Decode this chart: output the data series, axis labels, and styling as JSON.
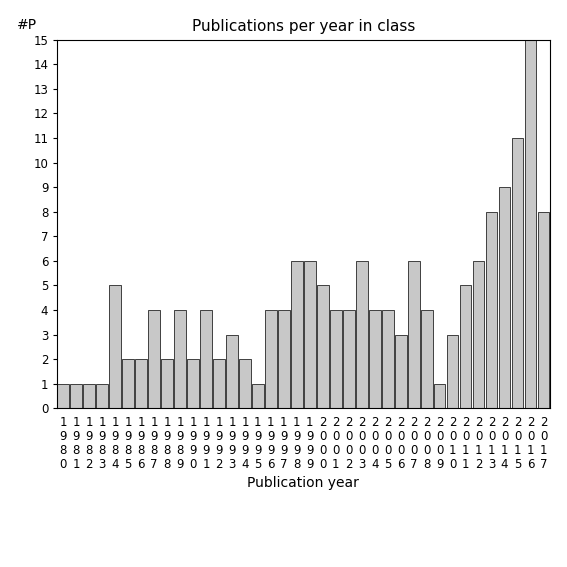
{
  "title": "Publications per year in class",
  "xlabel": "Publication year",
  "ylabel": "#P",
  "years": [
    1980,
    1981,
    1982,
    1983,
    1984,
    1985,
    1986,
    1987,
    1988,
    1989,
    1990,
    1991,
    1992,
    1993,
    1994,
    1995,
    1996,
    1997,
    1998,
    1999,
    2000,
    2001,
    2002,
    2003,
    2004,
    2005,
    2006,
    2007,
    2008,
    2009,
    2010,
    2011,
    2012,
    2013,
    2014,
    2015,
    2016,
    2017
  ],
  "values": [
    1,
    1,
    1,
    1,
    5,
    2,
    2,
    4,
    2,
    4,
    2,
    4,
    2,
    3,
    2,
    1,
    4,
    4,
    6,
    6,
    5,
    4,
    4,
    6,
    4,
    4,
    3,
    6,
    4,
    1,
    3,
    5,
    6,
    8,
    9,
    11,
    15,
    8
  ],
  "bar_color": "#c8c8c8",
  "bar_edgecolor": "#000000",
  "ylim": [
    0,
    15
  ],
  "yticks": [
    0,
    1,
    2,
    3,
    4,
    5,
    6,
    7,
    8,
    9,
    10,
    11,
    12,
    13,
    14,
    15
  ],
  "background_color": "#ffffff",
  "title_fontsize": 11,
  "label_fontsize": 10,
  "tick_fontsize": 8.5
}
